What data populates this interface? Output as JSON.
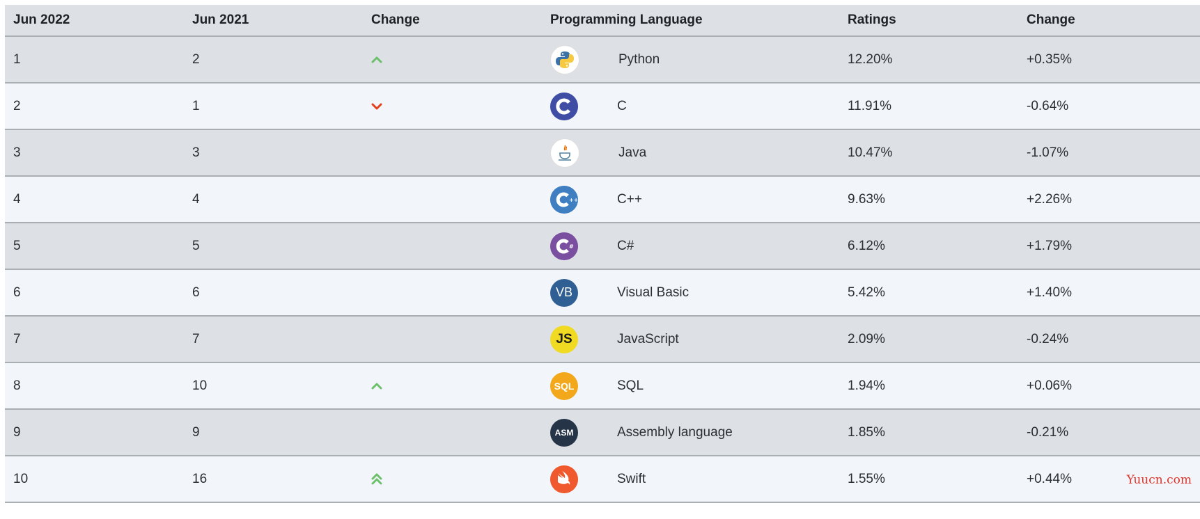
{
  "headers": {
    "current": "Jun 2022",
    "previous": "Jun 2021",
    "change": "Change",
    "language": "Programming Language",
    "ratings": "Ratings",
    "change_pct": "Change"
  },
  "rows": [
    {
      "current": "1",
      "previous": "2",
      "trend": "up",
      "language": "Python",
      "logo": "python-icon",
      "ratings": "12.20%",
      "change": "+0.35%"
    },
    {
      "current": "2",
      "previous": "1",
      "trend": "down",
      "language": "C",
      "logo": "c-language-icon",
      "ratings": "11.91%",
      "change": "-0.64%"
    },
    {
      "current": "3",
      "previous": "3",
      "trend": "none",
      "language": "Java",
      "logo": "java-icon",
      "ratings": "10.47%",
      "change": "-1.07%"
    },
    {
      "current": "4",
      "previous": "4",
      "trend": "none",
      "language": "C++",
      "logo": "cpp-icon",
      "ratings": "9.63%",
      "change": "+2.26%"
    },
    {
      "current": "5",
      "previous": "5",
      "trend": "none",
      "language": "C#",
      "logo": "csharp-icon",
      "ratings": "6.12%",
      "change": "+1.79%"
    },
    {
      "current": "6",
      "previous": "6",
      "trend": "none",
      "language": "Visual Basic",
      "logo": "visual-basic-icon",
      "logo_text": "VB",
      "ratings": "5.42%",
      "change": "+1.40%"
    },
    {
      "current": "7",
      "previous": "7",
      "trend": "none",
      "language": "JavaScript",
      "logo": "javascript-icon",
      "logo_text": "JS",
      "ratings": "2.09%",
      "change": "-0.24%"
    },
    {
      "current": "8",
      "previous": "10",
      "trend": "up",
      "language": "SQL",
      "logo": "sql-icon",
      "logo_text": "SQL",
      "ratings": "1.94%",
      "change": "+0.06%"
    },
    {
      "current": "9",
      "previous": "9",
      "trend": "none",
      "language": "Assembly language",
      "logo": "assembly-icon",
      "logo_text": "ASM",
      "ratings": "1.85%",
      "change": "-0.21%"
    },
    {
      "current": "10",
      "previous": "16",
      "trend": "double-up",
      "language": "Swift",
      "logo": "swift-icon",
      "ratings": "1.55%",
      "change": "+0.44%"
    }
  ],
  "colors": {
    "up_arrow": "#6cc06a",
    "down_arrow": "#e2411c",
    "watermark": "#d9342b"
  },
  "watermark": "Yuucn.com"
}
